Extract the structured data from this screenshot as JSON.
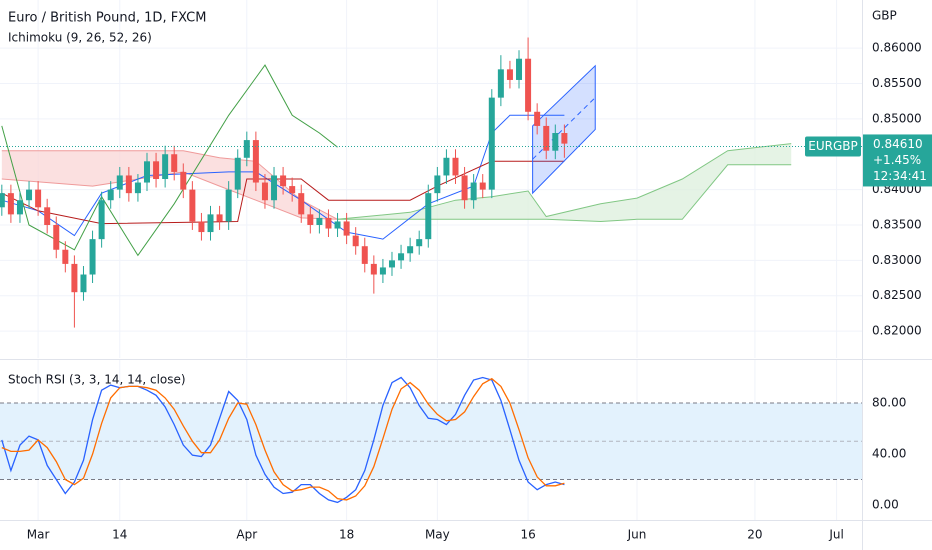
{
  "chart_data": [
    {
      "type": "candlestick",
      "title": "Euro / British Pound, 1D, FXCM",
      "subtitle": "Ichimoku (9, 26, 52, 26)",
      "currency": "GBP",
      "up_color": "#26a69a",
      "down_color": "#ef5350",
      "x": [
        0,
        1,
        2,
        3,
        4,
        5,
        6,
        7,
        8,
        9,
        10,
        11,
        12,
        13,
        14,
        15,
        16,
        17,
        18,
        19,
        20,
        21,
        22,
        23,
        24,
        25,
        26,
        27,
        28,
        29,
        30,
        31,
        32,
        33,
        34,
        35,
        36,
        37,
        38,
        39,
        40,
        41,
        42,
        43,
        44,
        45,
        46,
        47,
        48,
        49,
        50,
        51,
        52,
        53,
        54,
        55,
        56,
        57,
        58,
        59,
        60,
        61,
        62
      ],
      "open": [
        0.8375,
        0.8395,
        0.8365,
        0.8385,
        0.84,
        0.8375,
        0.835,
        0.8315,
        0.8295,
        0.8255,
        0.828,
        0.833,
        0.8385,
        0.84,
        0.842,
        0.8395,
        0.841,
        0.844,
        0.8415,
        0.845,
        0.8425,
        0.84,
        0.8355,
        0.834,
        0.8365,
        0.8355,
        0.84,
        0.8445,
        0.847,
        0.841,
        0.8385,
        0.842,
        0.8405,
        0.8395,
        0.8365,
        0.835,
        0.836,
        0.8345,
        0.8355,
        0.8335,
        0.832,
        0.8295,
        0.828,
        0.829,
        0.83,
        0.831,
        0.832,
        0.833,
        0.8395,
        0.842,
        0.8445,
        0.842,
        0.8385,
        0.841,
        0.84,
        0.853,
        0.857,
        0.8555,
        0.8585,
        0.851,
        0.849,
        0.8455,
        0.848
      ],
      "high": [
        0.8407,
        0.8407,
        0.8397,
        0.8412,
        0.8412,
        0.8387,
        0.8362,
        0.8327,
        0.8307,
        0.8292,
        0.8342,
        0.8397,
        0.8412,
        0.8432,
        0.8432,
        0.8422,
        0.8452,
        0.8452,
        0.8462,
        0.8462,
        0.8437,
        0.8412,
        0.8367,
        0.8377,
        0.8377,
        0.8412,
        0.8457,
        0.8482,
        0.8482,
        0.8422,
        0.8432,
        0.8432,
        0.8417,
        0.8407,
        0.8377,
        0.8372,
        0.8372,
        0.8367,
        0.8367,
        0.8347,
        0.8332,
        0.8307,
        0.8302,
        0.8312,
        0.8322,
        0.8332,
        0.8342,
        0.8407,
        0.8432,
        0.8457,
        0.8457,
        0.8432,
        0.8422,
        0.8422,
        0.8542,
        0.859,
        0.8582,
        0.8597,
        0.8615,
        0.8522,
        0.8502,
        0.8492,
        0.8492
      ],
      "low": [
        0.8363,
        0.8353,
        0.8353,
        0.8373,
        0.8363,
        0.8338,
        0.8303,
        0.8283,
        0.8205,
        0.8243,
        0.8268,
        0.8318,
        0.8373,
        0.8388,
        0.8383,
        0.8383,
        0.8398,
        0.8403,
        0.8403,
        0.8413,
        0.8388,
        0.8343,
        0.8328,
        0.8328,
        0.8343,
        0.8343,
        0.8388,
        0.8433,
        0.8398,
        0.8373,
        0.8373,
        0.8393,
        0.8383,
        0.8353,
        0.8338,
        0.8338,
        0.8333,
        0.8333,
        0.8323,
        0.8308,
        0.8283,
        0.8253,
        0.8268,
        0.8278,
        0.8288,
        0.8298,
        0.8308,
        0.8318,
        0.8383,
        0.8408,
        0.8408,
        0.8373,
        0.8373,
        0.8388,
        0.8388,
        0.8518,
        0.8543,
        0.8543,
        0.8498,
        0.8478,
        0.8443,
        0.8443,
        0.8445
      ],
      "close": [
        0.8395,
        0.8365,
        0.8385,
        0.84,
        0.8375,
        0.835,
        0.8315,
        0.8295,
        0.8255,
        0.828,
        0.833,
        0.8385,
        0.84,
        0.842,
        0.8395,
        0.841,
        0.844,
        0.8415,
        0.845,
        0.8425,
        0.84,
        0.8355,
        0.834,
        0.8365,
        0.8355,
        0.84,
        0.8445,
        0.847,
        0.841,
        0.8385,
        0.842,
        0.8405,
        0.8395,
        0.8365,
        0.835,
        0.836,
        0.8345,
        0.8355,
        0.8335,
        0.832,
        0.8295,
        0.828,
        0.829,
        0.83,
        0.831,
        0.832,
        0.833,
        0.8395,
        0.842,
        0.8445,
        0.842,
        0.8385,
        0.841,
        0.84,
        0.853,
        0.857,
        0.8555,
        0.8585,
        0.851,
        0.849,
        0.8455,
        0.848,
        0.8465
      ],
      "overlays": [
        {
          "color": "#2962ff",
          "x": [
            0,
            4,
            8,
            11,
            16,
            25,
            28,
            33,
            38,
            42,
            47,
            52,
            54,
            56,
            62
          ],
          "values": [
            0.8385,
            0.837,
            0.8335,
            0.8395,
            0.842,
            0.8425,
            0.8425,
            0.8385,
            0.834,
            0.833,
            0.838,
            0.8405,
            0.848,
            0.8505,
            0.8505
          ]
        },
        {
          "color": "#b71c1c",
          "x": [
            0,
            4,
            11,
            26,
            27,
            33,
            36,
            45,
            48,
            54,
            62
          ],
          "values": [
            0.8395,
            0.837,
            0.8352,
            0.8355,
            0.8415,
            0.8415,
            0.8385,
            0.8385,
            0.8405,
            0.844,
            0.844
          ]
        },
        {
          "color": "#43a047",
          "x": [
            0,
            3,
            8,
            11,
            15,
            19,
            25,
            29,
            32,
            35,
            37
          ],
          "values": [
            0.849,
            0.835,
            0.8315,
            0.839,
            0.8307,
            0.838,
            0.8505,
            0.8576,
            0.8505,
            0.848,
            0.846
          ]
        }
      ],
      "cloud": [
        {
          "fill": "#f9d6d5",
          "line_color": "#ef9a9a",
          "x": [
            0,
            10,
            20,
            24,
            28,
            33,
            37
          ],
          "upper": [
            0.8455,
            0.8455,
            0.8455,
            0.8445,
            0.844,
            0.8385,
            0.8358
          ],
          "lower": [
            0.8415,
            0.8405,
            0.8425,
            0.8405,
            0.8385,
            0.836,
            0.8358
          ]
        },
        {
          "fill": "#dcefdc",
          "line_color": "#81c784",
          "x": [
            37,
            45,
            50,
            54,
            58,
            60,
            66,
            70,
            75,
            80,
            87
          ],
          "upper": [
            0.8358,
            0.8368,
            0.8385,
            0.839,
            0.8398,
            0.8362,
            0.838,
            0.8388,
            0.8415,
            0.8455,
            0.8465
          ],
          "lower": [
            0.8358,
            0.8358,
            0.8358,
            0.8358,
            0.8358,
            0.8358,
            0.8355,
            0.8358,
            0.8358,
            0.8435,
            0.8435
          ]
        }
      ],
      "channel": {
        "color": "#2962ff",
        "x": [
          58.5,
          65.4
        ],
        "upper": [
          0.849,
          0.8575
        ],
        "lower": [
          0.8395,
          0.8485
        ],
        "mid": [
          0.8443,
          0.853
        ]
      },
      "last": {
        "value": 0.8461,
        "label": "0.84610",
        "symbol": "EURGBP",
        "change": "+1.45%",
        "countdown": "12:34:41"
      },
      "xlim": [
        -0.2,
        94.8
      ],
      "xticks": [
        {
          "value": 4,
          "label": "Mar"
        },
        {
          "value": 13,
          "label": "14"
        },
        {
          "value": 27,
          "label": "Apr"
        },
        {
          "value": 38,
          "label": "18"
        },
        {
          "value": 48,
          "label": "May"
        },
        {
          "value": 58,
          "label": "16"
        },
        {
          "value": 70,
          "label": "Jun"
        },
        {
          "value": 83,
          "label": "20"
        },
        {
          "value": 92,
          "label": "Jul"
        }
      ],
      "ylim": [
        0.8162,
        0.8668
      ],
      "yticks": [
        {
          "value": 0.82,
          "label": "0.82000"
        },
        {
          "value": 0.825,
          "label": "0.82500"
        },
        {
          "value": 0.83,
          "label": "0.83000"
        },
        {
          "value": 0.835,
          "label": "0.83500"
        },
        {
          "value": 0.84,
          "label": "0.84000"
        },
        {
          "value": 0.85,
          "label": "0.85000"
        },
        {
          "value": 0.855,
          "label": "0.85500"
        },
        {
          "value": 0.86,
          "label": "0.86000"
        }
      ],
      "grid": true
    },
    {
      "type": "line",
      "title": "Stoch RSI (3, 3, 14, 14, close)",
      "series": [
        {
          "color": "#2962ff",
          "values": [
            51,
            27,
            47,
            54,
            51,
            31,
            20,
            9,
            18,
            35,
            67,
            90,
            94,
            92,
            93,
            93,
            90,
            86,
            77,
            63,
            47,
            39,
            38,
            47,
            68,
            89,
            82,
            67,
            39,
            24,
            14,
            9,
            10,
            16,
            16,
            9,
            4,
            2,
            6,
            12,
            27,
            51,
            78,
            96,
            100,
            92,
            78,
            68,
            67,
            63,
            71,
            86,
            98,
            100,
            98,
            82,
            59,
            35,
            18,
            12,
            16,
            18,
            16
          ]
        },
        {
          "color": "#ff6d00",
          "values": [
            45,
            42,
            42,
            43,
            51,
            45,
            34,
            20,
            16,
            21,
            40,
            64,
            84,
            92,
            93,
            93,
            92,
            90,
            84,
            75,
            62,
            50,
            41,
            41,
            51,
            68,
            80,
            79,
            63,
            43,
            26,
            16,
            11,
            12,
            14,
            14,
            11,
            5,
            4,
            7,
            15,
            30,
            52,
            75,
            91,
            96,
            90,
            79,
            71,
            66,
            67,
            73,
            85,
            95,
            99,
            93,
            80,
            59,
            37,
            22,
            15,
            15,
            17
          ]
        }
      ],
      "band": [
        20,
        80
      ],
      "band_color": "#e3f2fd",
      "midline": 50,
      "ylim": [
        -11.8,
        113.7
      ],
      "yticks": [
        {
          "value": 0,
          "label": "0.00"
        },
        {
          "value": 40,
          "label": "40.00"
        },
        {
          "value": 80,
          "label": "80.00"
        }
      ]
    }
  ]
}
